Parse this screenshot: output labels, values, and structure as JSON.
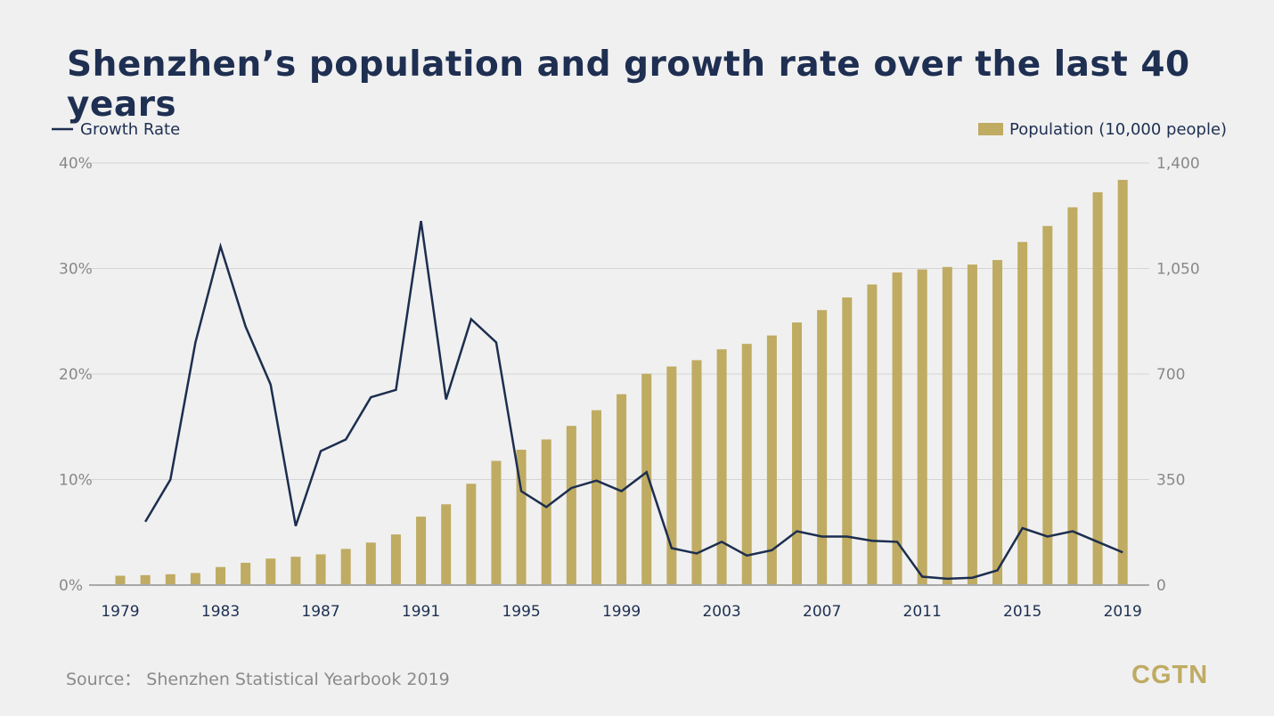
{
  "chart_data": {
    "type": "bar+line",
    "title": "Shenzhen’s population and growth rate over the last 40 years",
    "source": "Source： Shenzhen Statistical Yearbook 2019",
    "logo": "CGTN",
    "legend": {
      "line": "Growth Rate",
      "bar": "Population (10,000 people)",
      "placement": "top"
    },
    "colors": {
      "line": "#1d2e4f",
      "bar": "#bfab62",
      "grid": "#d4d4d4",
      "axis": "#a8a8a8"
    },
    "left_axis": {
      "ylim": [
        0,
        40
      ],
      "ticks": [
        "0%",
        "10%",
        "20%",
        "30%",
        "40%"
      ]
    },
    "right_axis": {
      "ylim": [
        0,
        1400
      ],
      "ticks": [
        "0",
        "350",
        "700",
        "1,050",
        "1,400"
      ]
    },
    "x_tick_labels": [
      "1979",
      "1983",
      "1987",
      "1991",
      "1995",
      "1999",
      "2003",
      "2007",
      "2011",
      "2015",
      "2019"
    ],
    "years": [
      1979,
      1980,
      1981,
      1982,
      1983,
      1984,
      1985,
      1986,
      1987,
      1988,
      1989,
      1990,
      1991,
      1992,
      1993,
      1994,
      1995,
      1996,
      1997,
      1998,
      1999,
      2000,
      2001,
      2002,
      2003,
      2004,
      2005,
      2006,
      2007,
      2008,
      2009,
      2010,
      2011,
      2012,
      2013,
      2014,
      2015,
      2016,
      2017,
      2018,
      2019
    ],
    "series": [
      {
        "name": "Population (10,000 people)",
        "axis": "right",
        "type": "bar",
        "values": [
          31,
          33,
          36,
          40,
          60,
          74,
          88,
          94,
          102,
          120,
          141,
          168,
          227,
          268,
          336,
          412,
          449,
          483,
          528,
          580,
          633,
          701,
          725,
          746,
          782,
          800,
          828,
          871,
          912,
          954,
          997,
          1037,
          1047,
          1055,
          1063,
          1078,
          1138,
          1191,
          1253,
          1303,
          1344
        ]
      },
      {
        "name": "Growth Rate",
        "axis": "left",
        "type": "line",
        "unit": "%",
        "values": [
          null,
          6.0,
          10.0,
          23.0,
          32.1,
          24.5,
          19.0,
          5.6,
          12.7,
          13.8,
          17.8,
          18.5,
          34.5,
          17.6,
          25.2,
          23.0,
          8.9,
          7.4,
          9.2,
          9.9,
          8.9,
          10.7,
          3.5,
          3.0,
          4.1,
          2.8,
          3.3,
          5.1,
          4.6,
          4.6,
          4.2,
          4.1,
          0.8,
          0.6,
          0.7,
          1.4,
          5.4,
          4.6,
          5.1,
          4.1,
          3.1
        ]
      }
    ]
  }
}
